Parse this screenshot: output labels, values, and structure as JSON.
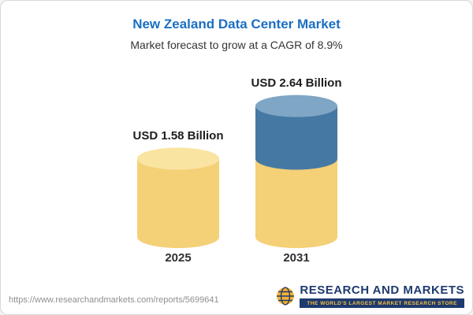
{
  "header": {
    "title": "New Zealand Data Center Market",
    "subtitle": "Market forecast to grow at a CAGR of 8.9%"
  },
  "chart_data": {
    "type": "bar",
    "variant": "cylinder",
    "categories": [
      "2025",
      "2031"
    ],
    "values": [
      1.58,
      2.64
    ],
    "value_labels": [
      "USD 1.58 Billion",
      "USD 2.64 Billion"
    ],
    "unit": "USD Billion",
    "title": "New Zealand Data Center Market",
    "subtitle": "Market forecast to grow at a CAGR of 8.9%",
    "cagr": "8.9%",
    "legend_position": "none",
    "grid": false,
    "colors": {
      "base": "#f4d077",
      "base_top": "#fae4a2",
      "growth": "#4678a4",
      "growth_top": "#7fa6c4"
    }
  },
  "footer": {
    "url": "https://www.researchandmarkets.com/reports/5699641",
    "logo_text": "RESEARCH AND MARKETS",
    "logo_tagline": "THE WORLD'S LARGEST MARKET RESEARCH STORE"
  },
  "brand_colors": {
    "title_blue": "#1b6fc2",
    "logo_navy": "#1e3a6e",
    "logo_gold": "#f2b234"
  }
}
